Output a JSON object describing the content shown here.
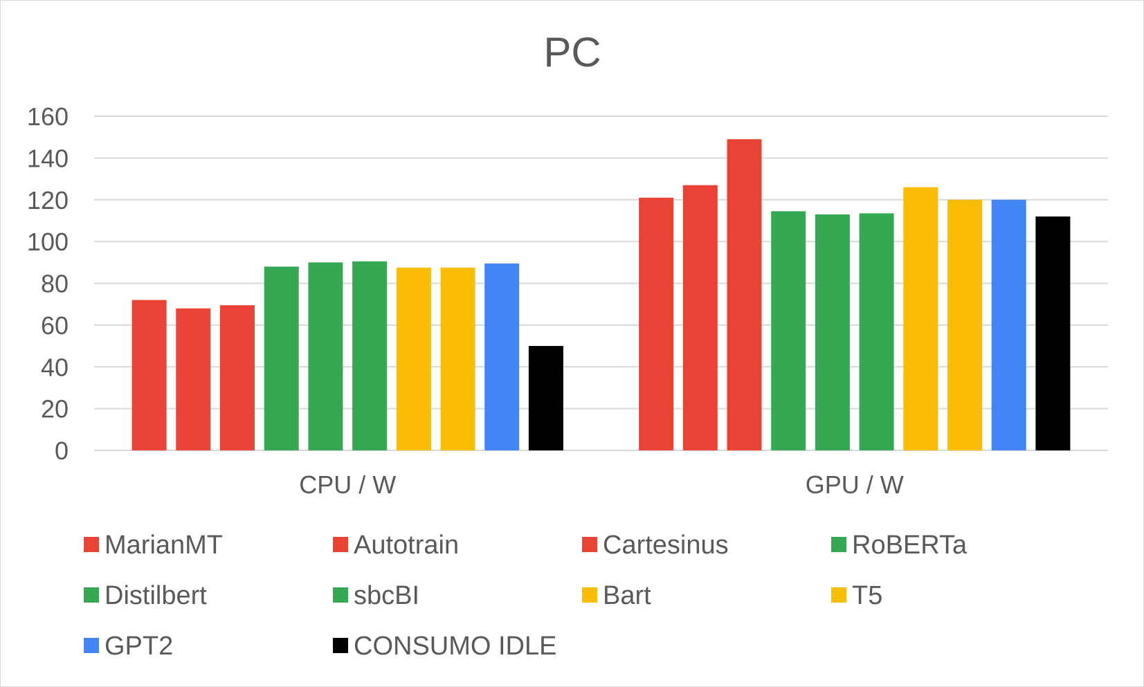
{
  "chart_data": {
    "type": "bar",
    "title": "PC",
    "categories": [
      "CPU / W",
      "GPU / W"
    ],
    "ylim": [
      0,
      160
    ],
    "yticks": [
      0,
      20,
      40,
      60,
      80,
      100,
      120,
      140,
      160
    ],
    "grid": true,
    "legend_position": "bottom",
    "series": [
      {
        "name": "MarianMT",
        "color": "#EA4335",
        "values": [
          72,
          121
        ]
      },
      {
        "name": "Autotrain",
        "color": "#EA4335",
        "values": [
          68,
          127
        ]
      },
      {
        "name": "Cartesinus",
        "color": "#EA4335",
        "values": [
          69.5,
          149
        ]
      },
      {
        "name": "RoBERTa",
        "color": "#34A853",
        "values": [
          88,
          114.5
        ]
      },
      {
        "name": "Distilbert",
        "color": "#34A853",
        "values": [
          90,
          113
        ]
      },
      {
        "name": "sbcBI",
        "color": "#34A853",
        "values": [
          90.5,
          113.5
        ]
      },
      {
        "name": "Bart",
        "color": "#FBBC04",
        "values": [
          87.5,
          126
        ]
      },
      {
        "name": "T5",
        "color": "#FBBC04",
        "values": [
          87.5,
          120
        ]
      },
      {
        "name": "GPT2",
        "color": "#4285F4",
        "values": [
          89.5,
          120
        ]
      },
      {
        "name": "CONSUMO IDLE",
        "color": "#000000",
        "values": [
          50,
          112
        ]
      }
    ]
  }
}
